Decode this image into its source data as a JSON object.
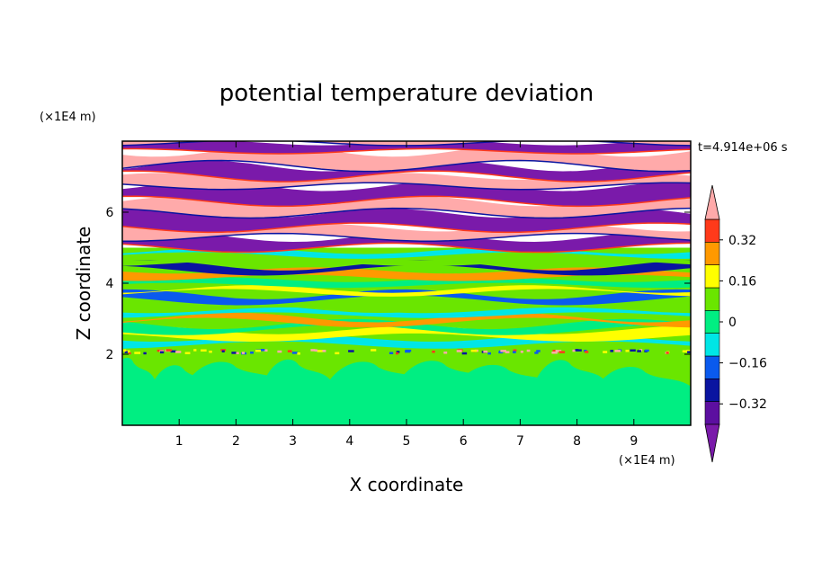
{
  "chart_data": {
    "type": "heatmap",
    "title": "potential temperature deviation",
    "xlabel": "X coordinate",
    "ylabel": "Z coordinate",
    "x_unit": "(×1E4 m)",
    "y_unit": "(×1E4 m)",
    "time_label": "t=4.914e+06 s",
    "xlim": [
      0,
      10
    ],
    "ylim": [
      0,
      8
    ],
    "x_ticks": [
      1,
      2,
      3,
      4,
      5,
      6,
      7,
      8,
      9
    ],
    "y_ticks": [
      2,
      4,
      6
    ],
    "colorbar": {
      "levels": [
        -0.4,
        -0.32,
        -0.24,
        -0.16,
        -0.08,
        0,
        0.08,
        0.16,
        0.24,
        0.32,
        0.4
      ],
      "tick_values": [
        0.32,
        0.16,
        0,
        -0.16,
        -0.32
      ],
      "tick_labels": [
        "0.32",
        "0.16",
        "0",
        "−0.16",
        "−0.32"
      ],
      "colors": [
        "#7a1aaa",
        "#5c0fa0",
        "#0a14a0",
        "#0a5aee",
        "#00e6e6",
        "#00ee82",
        "#6ae600",
        "#ffff00",
        "#ff9900",
        "#ff3a1a",
        "#ffaaaa"
      ],
      "extend": "both"
    },
    "layers": [
      {
        "z_range": [
          0,
          2
        ],
        "description_value": 0.04,
        "dominant_levels": [
          0.04,
          -0.04
        ]
      },
      {
        "z_range": [
          2,
          5
        ],
        "description_value": 0.0,
        "dominant_levels": [
          -0.12,
          -0.04,
          0.04,
          0.12,
          0.2
        ]
      },
      {
        "z_range": [
          5,
          8
        ],
        "description_value": 0.0,
        "dominant_levels": [
          -0.44,
          0.44
        ]
      }
    ]
  }
}
